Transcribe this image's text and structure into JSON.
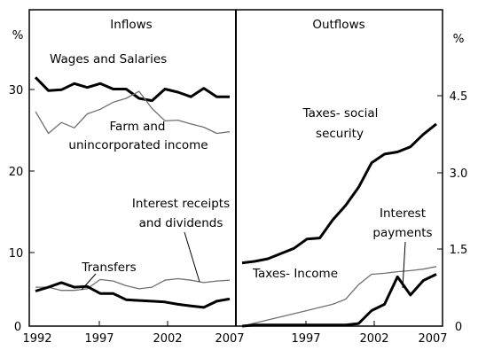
{
  "chart_data": [
    {
      "type": "line",
      "title": "Inflows",
      "unit_label": "%",
      "ylim": [
        0,
        35
      ],
      "xlim": [
        1992,
        2007
      ],
      "y_ticks": [
        "0",
        "10",
        "20",
        "30"
      ],
      "x_ticks": [
        "1992",
        "1997",
        "2002",
        "2007"
      ],
      "x_tick_values": [
        1992,
        1997,
        2002,
        2007
      ],
      "x": [
        1992,
        1993,
        1994,
        1995,
        1996,
        1997,
        1998,
        1999,
        2000,
        2001,
        2002,
        2003,
        2004,
        2005,
        2006,
        2007
      ],
      "series": [
        {
          "name": "Wages and Salaries",
          "color": "#000000",
          "width": "thick",
          "values": [
            32.0,
            30.3,
            30.4,
            31.2,
            30.7,
            31.2,
            30.5,
            30.5,
            29.3,
            29.0,
            30.5,
            30.1,
            29.5,
            30.6,
            29.5,
            29.5
          ]
        },
        {
          "name": "Farm and unincorporated income",
          "color": "#707070",
          "width": "thin",
          "values": [
            27.6,
            24.8,
            26.2,
            25.5,
            27.3,
            27.9,
            28.8,
            29.3,
            30.2,
            28.0,
            26.4,
            26.5,
            26.0,
            25.6,
            24.8,
            25.0
          ]
        },
        {
          "name": "Interest receipts and dividends",
          "color": "#707070",
          "width": "thin",
          "values": [
            5.0,
            5.0,
            4.6,
            4.6,
            4.8,
            6.0,
            5.8,
            5.2,
            4.8,
            5.0,
            5.9,
            6.1,
            5.9,
            5.6,
            5.8,
            5.9
          ]
        },
        {
          "name": "Transfers",
          "color": "#000000",
          "width": "thick",
          "values": [
            4.5,
            5.0,
            5.6,
            5.0,
            5.1,
            4.2,
            4.2,
            3.4,
            3.3,
            3.2,
            3.1,
            2.8,
            2.6,
            2.4,
            3.2,
            3.5
          ]
        }
      ]
    },
    {
      "type": "line",
      "title": "Outflows",
      "unit_label": "%",
      "ylim": [
        0,
        5.25
      ],
      "xlim": [
        1992,
        2007
      ],
      "y_ticks": [
        "0",
        "1.5",
        "3.0",
        "4.5"
      ],
      "x_ticks": [
        "1997",
        "2002",
        "2007"
      ],
      "x_tick_values": [
        1997,
        2002,
        2007
      ],
      "x": [
        1992,
        1993,
        1994,
        1995,
        1996,
        1997,
        1998,
        1999,
        2000,
        2001,
        2002,
        2003,
        2004,
        2005,
        2006,
        2007
      ],
      "series": [
        {
          "name": "Taxes- social security",
          "color": "#000000",
          "width": "thick",
          "values": [
            1.22,
            1.25,
            1.3,
            1.4,
            1.5,
            1.68,
            1.7,
            2.05,
            2.33,
            2.68,
            3.15,
            3.32,
            3.36,
            3.46,
            3.7,
            3.9
          ]
        },
        {
          "name": "Taxes- Income",
          "color": "#707070",
          "width": "thin",
          "values": [
            0.0,
            0.06,
            0.12,
            0.18,
            0.24,
            0.3,
            0.36,
            0.42,
            0.52,
            0.8,
            1.0,
            1.02,
            1.05,
            1.07,
            1.1,
            1.15
          ]
        },
        {
          "name": "Interest payments",
          "color": "#000000",
          "width": "thick",
          "values": [
            0.0,
            0.02,
            0.02,
            0.02,
            0.02,
            0.02,
            0.02,
            0.02,
            0.02,
            0.05,
            0.3,
            0.42,
            0.95,
            0.6,
            0.88,
            1.0
          ]
        }
      ]
    }
  ],
  "labels": {
    "wages": "Wages and Salaries",
    "farm_line1": "Farm and",
    "farm_line2": "unincorporated income",
    "interest_line1": "Interest receipts",
    "interest_line2": "and dividends",
    "transfers": "Transfers",
    "ss_line1": "Taxes- social",
    "ss_line2": "security",
    "interest_pay_line1": "Interest",
    "interest_pay_line2": "payments",
    "taxes_income": "Taxes- Income"
  }
}
